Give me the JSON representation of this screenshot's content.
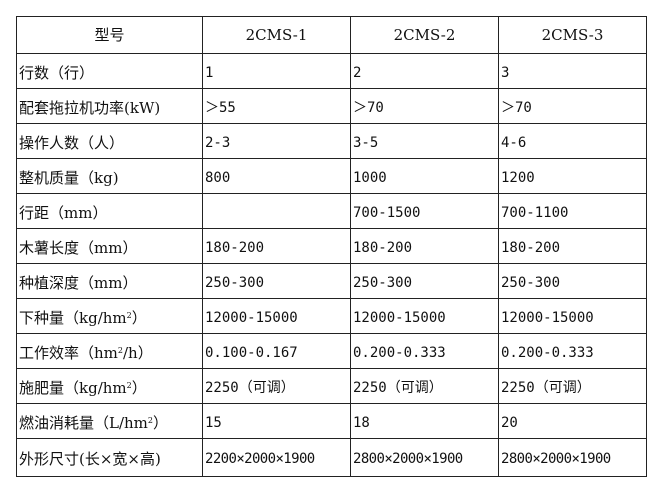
{
  "header": {
    "model": "型号",
    "cols": [
      "2CMS-1",
      "2CMS-2",
      "2CMS-3"
    ]
  },
  "rows": [
    {
      "label": "行数（行）",
      "values": [
        "1",
        "2",
        "3"
      ]
    },
    {
      "label": "配套拖拉机功率(kW)",
      "values": [
        "＞55",
        "＞70",
        "＞70"
      ]
    },
    {
      "label": "操作人数（人）",
      "values": [
        "2-3",
        "3-5",
        "4-6"
      ]
    },
    {
      "label": "整机质量（kg)",
      "values": [
        "800",
        "1000",
        "1200"
      ]
    },
    {
      "label": "行距（mm）",
      "values": [
        "",
        "700-1500",
        "700-1100"
      ]
    },
    {
      "label": "木薯长度（mm）",
      "values": [
        "180-200",
        "180-200",
        "180-200"
      ]
    },
    {
      "label": "种植深度（mm）",
      "values": [
        "250-300",
        "250-300",
        "250-300"
      ]
    },
    {
      "label_pre": "下种量（kg/hm",
      "label_sup": "2",
      "label_post": "）",
      "values": [
        "12000-15000",
        "12000-15000",
        "12000-15000"
      ]
    },
    {
      "label_pre": "工作效率（hm",
      "label_sup": "2",
      "label_post": "/h）",
      "values": [
        "0.100-0.167",
        "0.200-0.333",
        "0.200-0.333"
      ]
    },
    {
      "label_pre": "施肥量（kg/hm",
      "label_sup": "2",
      "label_post": "）",
      "values": [
        "2250（可调）",
        "2250（可调）",
        "2250（可调）"
      ]
    },
    {
      "label_pre": "燃油消耗量（L/hm",
      "label_sup": "2",
      "label_post": "）",
      "values": [
        "15",
        "18",
        "20"
      ]
    },
    {
      "label": "外形尺寸(长×宽×高)",
      "values": [
        "2200×2000×1900",
        "2800×2000×1900",
        "2800×2000×1900"
      ]
    }
  ]
}
